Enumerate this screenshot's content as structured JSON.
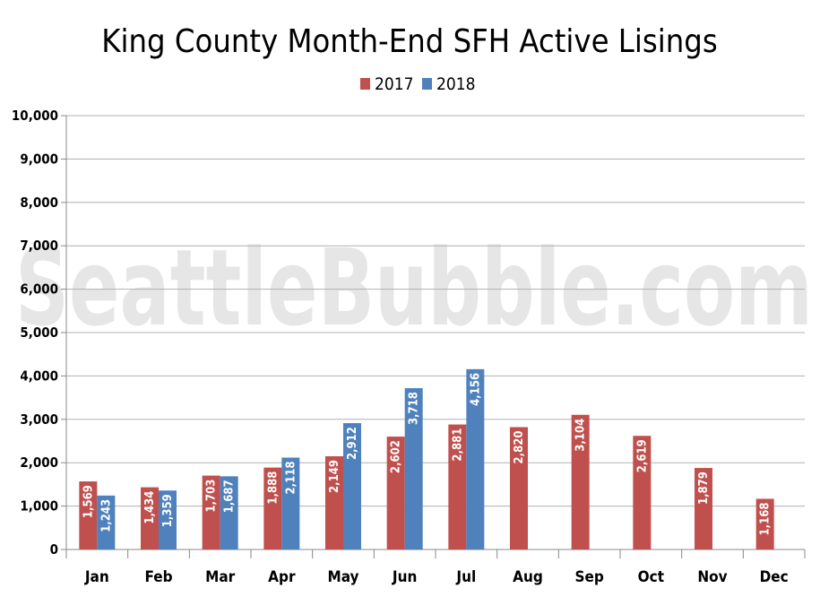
{
  "chart_data": {
    "type": "bar",
    "title": "King County Month-End SFH Active Lisings",
    "watermark": "SeattleBubble.com",
    "categories": [
      "Jan",
      "Feb",
      "Mar",
      "Apr",
      "May",
      "Jun",
      "Jul",
      "Aug",
      "Sep",
      "Oct",
      "Nov",
      "Dec"
    ],
    "series": [
      {
        "name": "2017",
        "color": "#c0504d",
        "values": [
          1569,
          1434,
          1703,
          1888,
          2149,
          2602,
          2881,
          2820,
          3104,
          2619,
          1879,
          1168
        ],
        "labels": [
          "1,569",
          "1,434",
          "1,703",
          "1,888",
          "2,149",
          "2,602",
          "2,881",
          "2,820",
          "3,104",
          "2,619",
          "1,879",
          "1,168"
        ]
      },
      {
        "name": "2018",
        "color": "#4f81bd",
        "values": [
          1243,
          1359,
          1687,
          2118,
          2912,
          3718,
          4156,
          null,
          null,
          null,
          null,
          null
        ],
        "labels": [
          "1,243",
          "1,359",
          "1,687",
          "2,118",
          "2,912",
          "3,718",
          "4,156",
          "",
          "",
          "",
          "",
          ""
        ]
      }
    ],
    "ylim": [
      0,
      10000
    ],
    "yticks": [
      0,
      1000,
      2000,
      3000,
      4000,
      5000,
      6000,
      7000,
      8000,
      9000,
      10000
    ],
    "ytick_labels": [
      "0",
      "1,000",
      "2,000",
      "3,000",
      "4,000",
      "5,000",
      "6,000",
      "7,000",
      "8,000",
      "9,000",
      "10,000"
    ],
    "xlabel": "",
    "ylabel": "",
    "grid": true,
    "legend": "top-center"
  }
}
